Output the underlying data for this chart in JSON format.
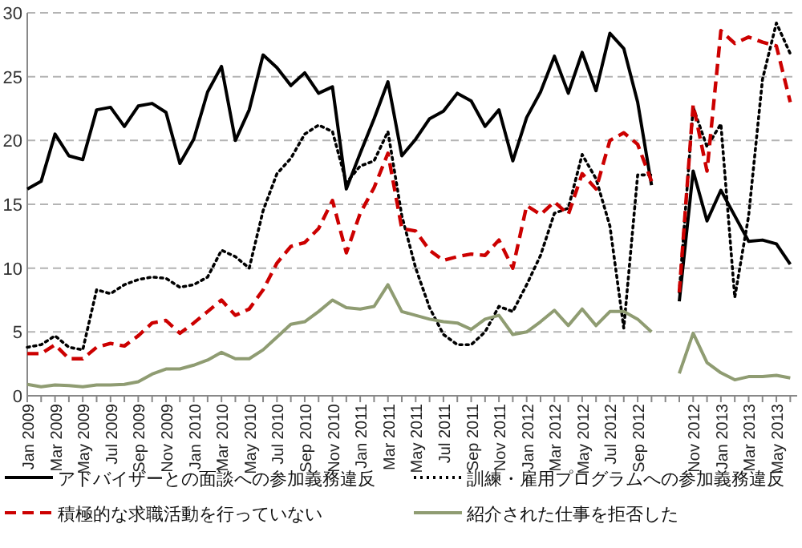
{
  "chart_data": {
    "type": "line",
    "categories": [
      "Jan 2009",
      null,
      "Mar 2009",
      null,
      "May 2009",
      null,
      "Jul 2009",
      null,
      "Sep 2009",
      null,
      "Nov 2009",
      null,
      "Jan 2010",
      null,
      "Mar 2010",
      null,
      "May 2010",
      null,
      "Jul 2010",
      null,
      "Sep 2010",
      null,
      "Nov 2010",
      null,
      "Jan 2011",
      null,
      "Mar 2011",
      null,
      "May 2011",
      null,
      "Jul 2011",
      null,
      "Sep 2011",
      null,
      "Nov 2011",
      null,
      "Jan 2012",
      null,
      "Mar 2012",
      null,
      "May 2012",
      null,
      "Jul 2012",
      null,
      "Sep 2012",
      null,
      null,
      null,
      "Nov 2012",
      null,
      "Jan 2013",
      null,
      "Mar 2013",
      null,
      "May 2013",
      null
    ],
    "ylim": [
      0,
      30
    ],
    "yticks": [
      0,
      5,
      10,
      15,
      20,
      25,
      30
    ],
    "grid": "y",
    "legend": "bottom",
    "series": [
      {
        "name": "アドバイザーとの面談への参加義務違反",
        "color": "#000000",
        "line_style": "solid",
        "values": [
          16.2,
          16.8,
          20.5,
          18.8,
          18.5,
          22.4,
          22.6,
          21.1,
          22.7,
          22.9,
          22.2,
          18.2,
          20.1,
          23.8,
          25.8,
          20.0,
          22.4,
          26.7,
          25.7,
          24.3,
          25.3,
          23.7,
          24.2,
          16.2,
          19.0,
          21.7,
          24.6,
          18.8,
          20.1,
          21.7,
          22.3,
          23.7,
          23.1,
          21.1,
          22.4,
          18.4,
          21.8,
          23.8,
          26.6,
          23.7,
          26.9,
          23.9,
          28.4,
          27.2,
          23.0,
          16.5,
          null,
          7.4,
          17.6,
          13.7,
          16.1,
          14.1,
          12.1,
          12.2,
          11.9,
          10.3
        ]
      },
      {
        "name": "訓練・雇用プログラムへの参加義務違反",
        "color": "#000000",
        "line_style": "dotted",
        "values": [
          3.8,
          4.0,
          4.7,
          3.8,
          3.6,
          8.3,
          8.0,
          8.7,
          9.1,
          9.3,
          9.2,
          8.5,
          8.7,
          9.3,
          11.4,
          10.9,
          10.0,
          14.5,
          17.4,
          18.6,
          20.5,
          21.2,
          20.7,
          16.7,
          18.0,
          18.4,
          20.7,
          14.1,
          10.0,
          6.9,
          4.8,
          4.0,
          4.0,
          5.0,
          7.0,
          6.6,
          8.7,
          11.0,
          14.3,
          14.7,
          18.9,
          17.0,
          13.3,
          5.3,
          17.3,
          17.3,
          null,
          8.1,
          22.6,
          19.5,
          21.3,
          7.7,
          14.1,
          24.8,
          29.2,
          26.8
        ]
      },
      {
        "name": "積極的な求職活動を行っていない",
        "color": "#cc0000",
        "line_style": "dashed",
        "values": [
          3.3,
          3.3,
          4.0,
          2.9,
          2.9,
          3.8,
          4.1,
          3.9,
          4.7,
          5.7,
          5.9,
          4.9,
          5.7,
          6.6,
          7.5,
          6.3,
          6.8,
          8.3,
          10.4,
          11.7,
          12.0,
          13.1,
          15.3,
          11.2,
          14.3,
          16.3,
          19.0,
          13.1,
          12.9,
          11.4,
          10.6,
          10.9,
          11.1,
          11.0,
          12.2,
          10.0,
          14.9,
          14.2,
          15.2,
          14.2,
          17.4,
          16.2,
          20.0,
          20.6,
          19.7,
          16.8,
          null,
          8.1,
          22.8,
          17.6,
          28.6,
          27.6,
          28.1,
          27.7,
          27.4,
          23.0
        ]
      },
      {
        "name": "紹介された仕事を拒否した",
        "color": "#8f9c72",
        "line_style": "solid",
        "values": [
          0.9,
          0.7,
          0.85,
          0.8,
          0.7,
          0.85,
          0.85,
          0.9,
          1.1,
          1.7,
          2.1,
          2.1,
          2.4,
          2.8,
          3.4,
          2.9,
          2.9,
          3.6,
          4.6,
          5.6,
          5.8,
          6.6,
          7.5,
          6.9,
          6.8,
          7.0,
          8.7,
          6.6,
          6.3,
          6.0,
          5.8,
          5.7,
          5.2,
          6.0,
          6.3,
          4.8,
          5.0,
          5.8,
          6.7,
          5.5,
          6.8,
          5.5,
          6.6,
          6.6,
          6.0,
          5.0,
          null,
          1.75,
          4.9,
          2.6,
          1.8,
          1.25,
          1.5,
          1.5,
          1.6,
          1.4
        ]
      }
    ]
  }
}
